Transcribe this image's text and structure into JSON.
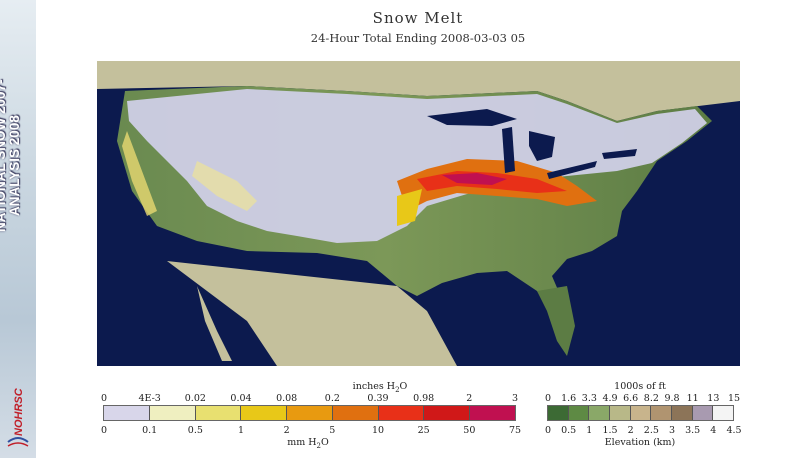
{
  "banner": {
    "line1": "NATIONAL SNOW",
    "line1_year": "2007-",
    "line2": "ANALYSIS",
    "line2_year": "2008",
    "logo_text": "NOHRSC"
  },
  "title": "Snow Melt",
  "subtitle": "24-Hour Total Ending 2008-03-03 05",
  "snow_legend": {
    "top_unit": "inches H",
    "top_unit_sub": "2",
    "top_unit_end": "O",
    "top_ticks": [
      "0",
      "4E-3",
      "0.02",
      "0.04",
      "0.08",
      "0.2",
      "0.39",
      "0.98",
      "2",
      "3"
    ],
    "bottom_ticks": [
      "0",
      "0.1",
      "0.5",
      "1",
      "2",
      "5",
      "10",
      "25",
      "50",
      "75"
    ],
    "bottom_unit": "mm H",
    "bottom_unit_sub": "2",
    "bottom_unit_end": "O",
    "colors": [
      "#d8d6ea",
      "#efefc0",
      "#e8e070",
      "#e8c818",
      "#e89a10",
      "#e07010",
      "#e83018",
      "#d01818",
      "#c01050"
    ]
  },
  "elevation_legend": {
    "top_unit": "1000s of ft",
    "top_ticks": [
      "0",
      "1.6",
      "3.3",
      "4.9",
      "6.6",
      "8.2",
      "9.8",
      "11",
      "13",
      "15"
    ],
    "bottom_ticks": [
      "0",
      "0.5",
      "1",
      "1.5",
      "2",
      "2.5",
      "3",
      "3.5",
      "4",
      "4.5"
    ],
    "bottom_unit": "Elevation (km)",
    "colors": [
      "#3c6a34",
      "#5e8a44",
      "#8aa868",
      "#b8b888",
      "#c8b48c",
      "#b09470",
      "#8c7458",
      "#a89ab0",
      "#f4f4f4"
    ]
  }
}
